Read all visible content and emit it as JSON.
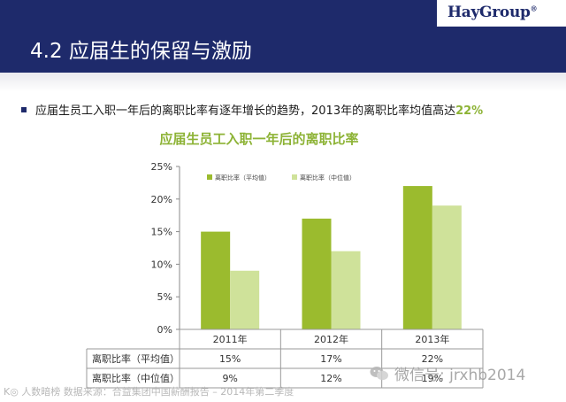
{
  "header": {
    "slide_title": "4.2 应届生的保留与激励",
    "logo_text": "HayGroup",
    "logo_mark": "®"
  },
  "bullet": {
    "text": "应届生员工入职一年后的离职比率有逐年增长的趋势，2013年的离职比率均值高达",
    "highlight": "22%"
  },
  "chart_data": {
    "type": "bar",
    "title": "应届生员工入职一年后的离职比率",
    "categories": [
      "2011年",
      "2012年",
      "2013年"
    ],
    "series": [
      {
        "name": "离职比率（平均值）",
        "values": [
          15,
          17,
          22
        ],
        "color": "#9bbb2e"
      },
      {
        "name": "离职比率（中位值）",
        "values": [
          9,
          12,
          19
        ],
        "color": "#cfe29a"
      }
    ],
    "ylim": [
      0,
      25
    ],
    "yticks": [
      "0%",
      "5%",
      "10%",
      "15%",
      "20%",
      "25%"
    ],
    "grid": false,
    "legend": "top-left inside plot",
    "table": {
      "row_labels": [
        "离职比率（平均值）",
        "离职比率（中位值）"
      ],
      "cells": [
        [
          "15%",
          "17%",
          "22%"
        ],
        [
          "9%",
          "12%",
          "19%"
        ]
      ]
    }
  },
  "watermarks": {
    "left": "K◎ 人数暗榜  数据来源：合益集团中国薪酬报告 – 2014年第二季度",
    "right": "微信号: jrxhb2014"
  },
  "colors": {
    "header_navy": "#1e2a6b",
    "title_green": "#8db336"
  }
}
